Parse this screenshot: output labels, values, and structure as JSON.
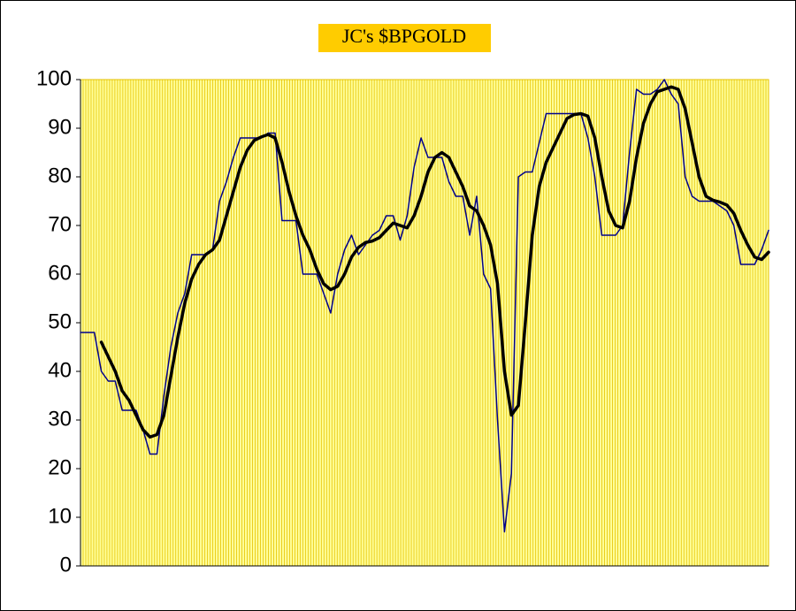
{
  "chart_data": {
    "type": "line",
    "title": "JC's $BPGOLD",
    "categories": [
      null,
      null,
      null,
      null,
      null,
      null,
      null,
      null,
      null,
      null,
      null,
      null,
      null,
      null,
      null,
      null,
      null,
      null,
      null,
      null,
      null,
      null,
      null,
      null,
      null,
      null,
      null,
      null,
      null,
      null,
      null,
      null,
      null,
      null,
      null,
      null,
      null,
      null,
      null,
      null,
      null,
      null,
      null,
      null,
      null,
      null,
      null,
      null,
      null,
      null,
      null,
      null,
      null,
      null,
      null,
      null,
      null,
      null,
      null,
      null,
      null,
      null,
      null,
      null,
      null,
      null,
      null,
      null,
      null,
      null,
      null,
      null,
      null,
      null,
      null,
      null,
      null,
      null,
      null,
      null,
      null,
      null,
      null,
      null,
      null,
      null,
      null,
      null,
      null,
      null,
      null,
      null,
      null,
      null,
      null,
      null,
      null,
      null,
      null,
      null
    ],
    "series": [
      {
        "color": "#00008b",
        "values": [
          48,
          48,
          48,
          40,
          38,
          38,
          32,
          32,
          32,
          28,
          23,
          23,
          35,
          45,
          52,
          56,
          64,
          64,
          64,
          65,
          75,
          79,
          84,
          88,
          88,
          88,
          88,
          89,
          89,
          71,
          71,
          71,
          60,
          60,
          60,
          56,
          52,
          60,
          65,
          68,
          64,
          66,
          68,
          69,
          72,
          72,
          67,
          72,
          82,
          88,
          84,
          84,
          84,
          79,
          76,
          76,
          68,
          76,
          60,
          57,
          30,
          7,
          19,
          80,
          81,
          81,
          87,
          93,
          93,
          93,
          93,
          93,
          93,
          88,
          80,
          68,
          68,
          68,
          70,
          85,
          98,
          97,
          97,
          98,
          100,
          97,
          95,
          80,
          76,
          75,
          75,
          75,
          74,
          73,
          70,
          62,
          62,
          62,
          65,
          69
        ]
      },
      {
        "color": "#000000",
        "values": [
          null,
          null,
          null,
          46,
          43,
          40,
          36,
          34,
          31,
          28,
          26.5,
          27,
          31,
          39,
          47,
          54,
          59,
          62,
          64,
          65,
          67,
          72,
          77,
          82,
          85.5,
          87.5,
          88.2,
          88.7,
          88,
          83,
          77,
          72,
          68,
          65,
          61,
          58,
          56.8,
          57.5,
          60,
          63.5,
          65.5,
          66.5,
          66.8,
          67.5,
          69,
          70.5,
          70,
          69.5,
          72,
          76,
          81,
          84,
          85,
          84,
          81,
          78,
          74,
          73,
          70,
          66,
          58,
          40,
          31,
          33,
          50,
          68,
          78,
          83,
          86,
          89,
          92,
          92.8,
          93,
          92.5,
          88,
          80,
          73,
          70,
          69.5,
          75,
          84,
          91,
          95,
          97.5,
          98,
          98.5,
          98,
          94,
          87,
          80,
          76,
          75.2,
          74.8,
          74.2,
          72.5,
          69,
          66,
          63.5,
          63,
          64.5
        ]
      }
    ],
    "ylim": [
      0,
      100
    ],
    "yticks": [
      0,
      10,
      20,
      30,
      40,
      50,
      60,
      70,
      80,
      90,
      100
    ],
    "plot_color": "#ffff99",
    "grid_color": "#e6c200",
    "title_background": "#ffcc00"
  }
}
